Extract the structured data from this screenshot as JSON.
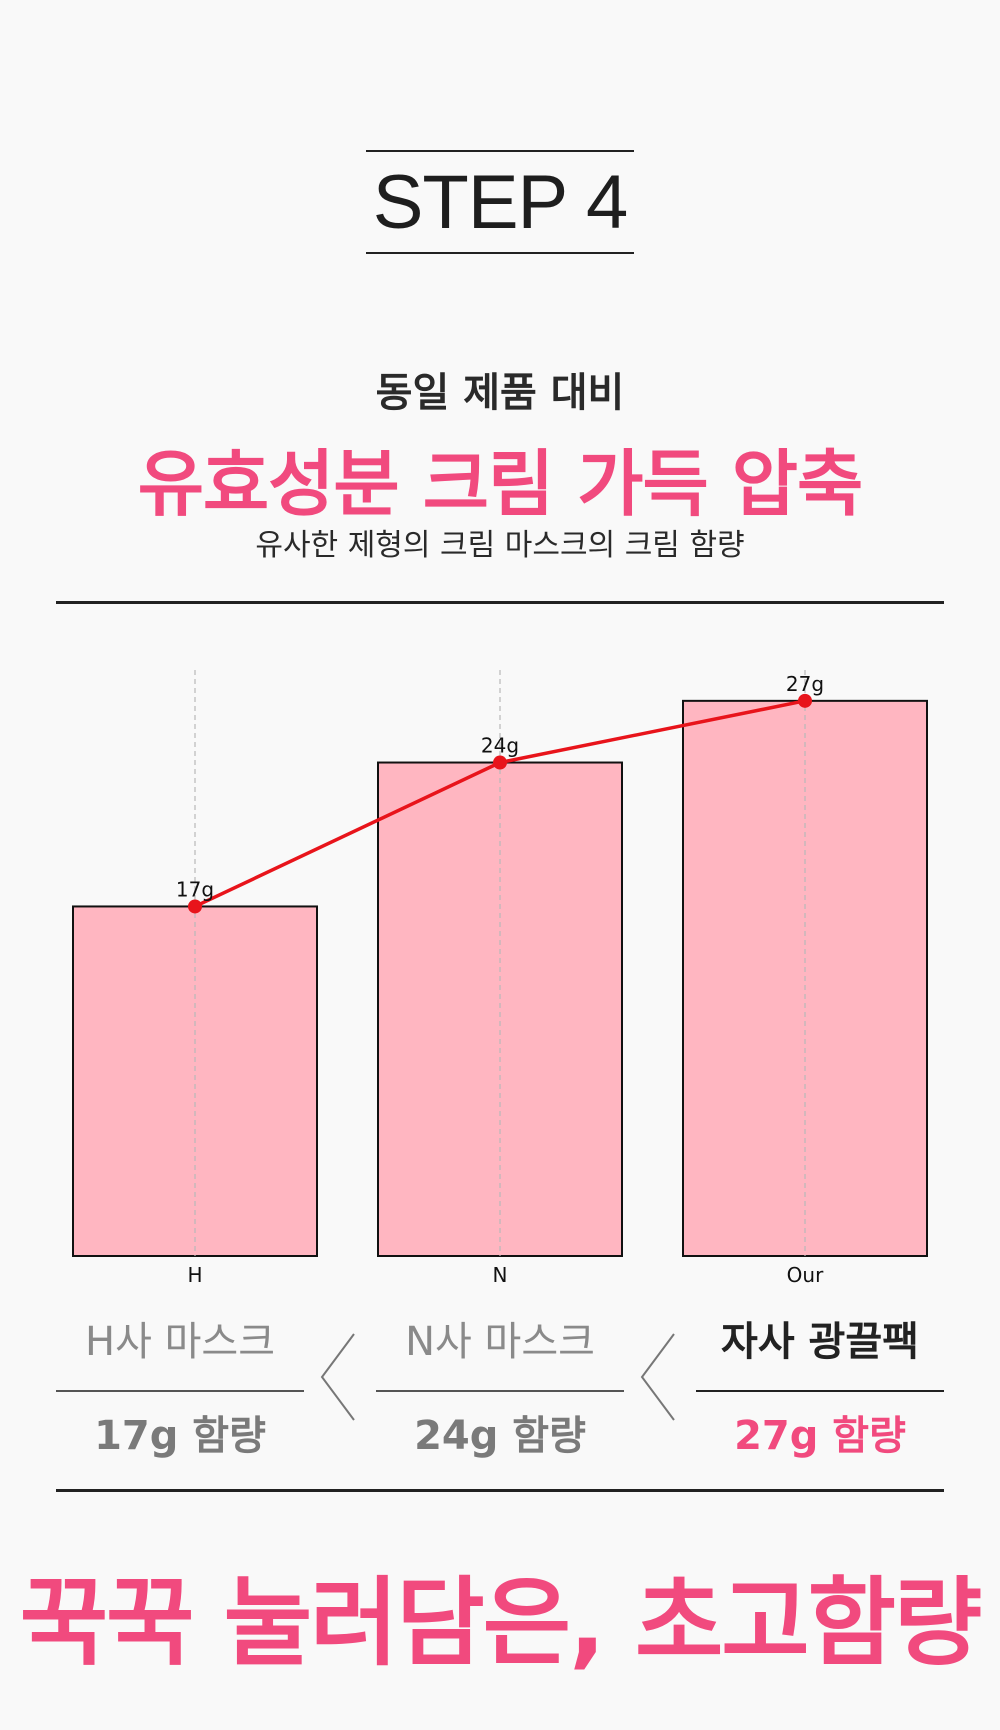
{
  "header": {
    "step_label": "STEP 4"
  },
  "headline": {
    "line1": "동일 제품 대비",
    "line2": "유효성분 크림 가득 압축",
    "line3": "유사한 제형의 크림 마스크의 크림 함량"
  },
  "chart_data": {
    "type": "bar",
    "categories": [
      "H",
      "N",
      "Our"
    ],
    "values": [
      17,
      24,
      27
    ],
    "data_labels": [
      "17g",
      "24g",
      "27g"
    ],
    "overlay_line": {
      "values": [
        17,
        24,
        27
      ],
      "color": "#e8141b"
    },
    "ylim": [
      0,
      28.5
    ],
    "bar_color": "#ffb6c1",
    "grid": "vertical dashed",
    "title": "",
    "xlabel": "",
    "ylabel": ""
  },
  "comparison": {
    "items": [
      {
        "name": "H사 마스크",
        "value": "17g 함량"
      },
      {
        "name": "N사 마스크",
        "value": "24g 함량"
      },
      {
        "name": "자사 광끌팩",
        "value": "27g 함량"
      }
    ]
  },
  "slogan": "꾹꾹 눌러담은, 초고함량",
  "colors": {
    "accent": "#f14a7e",
    "text": "#222222",
    "muted": "#8a8a8a",
    "background": "#f9f9f9"
  }
}
